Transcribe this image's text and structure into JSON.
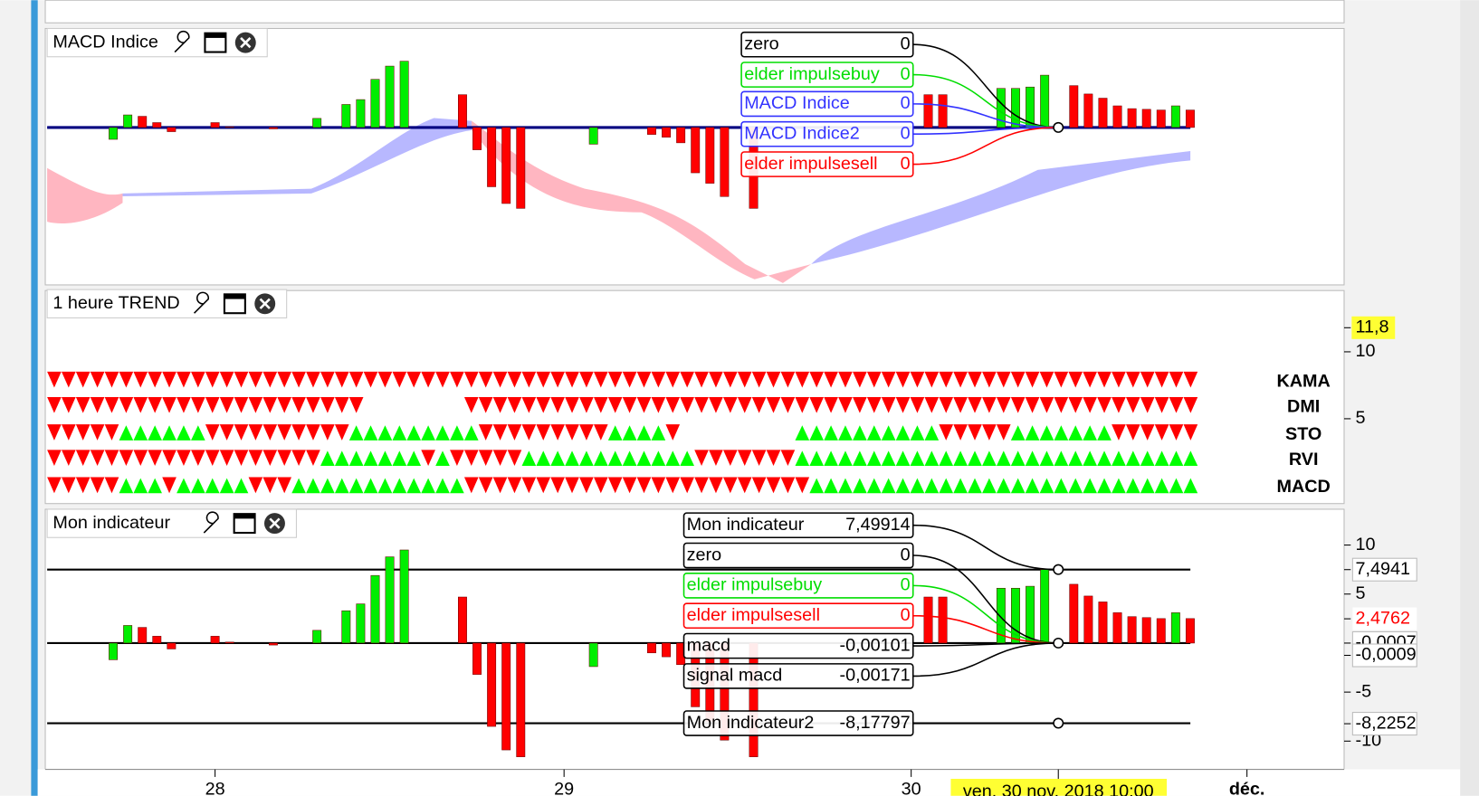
{
  "panels": [
    {
      "title": "MACD Indice",
      "legend": [
        {
          "name": "zero",
          "value": "0",
          "color": "#000000"
        },
        {
          "name": "elder impulsebuy",
          "value": "0",
          "color": "#00dd00"
        },
        {
          "name": "MACD Indice",
          "value": "0",
          "color": "#3333ff"
        },
        {
          "name": "MACD Indice2",
          "value": "0",
          "color": "#3333ff"
        },
        {
          "name": "elder impulsesell",
          "value": "0",
          "color": "#ff0000"
        }
      ]
    },
    {
      "title": "1 heure TREND",
      "marker": "11,8",
      "yticks": [
        10,
        5
      ],
      "rows": [
        {
          "name": "KAMA",
          "segments": [
            {
              "color": "#ff0000",
              "count": 80
            }
          ]
        },
        {
          "name": "DMI",
          "segments": [
            {
              "color": "#ff0000",
              "count": 22
            },
            {
              "color": null,
              "count": 7
            },
            {
              "color": "#ff0000",
              "count": 51
            }
          ]
        },
        {
          "name": "STO",
          "segments": [
            {
              "color": "#ff0000",
              "count": 5
            },
            {
              "color": "#00ff00",
              "count": 6
            },
            {
              "color": "#ff0000",
              "count": 10
            },
            {
              "color": "#00ff00",
              "count": 9
            },
            {
              "color": "#ff0000",
              "count": 9
            },
            {
              "color": "#00ff00",
              "count": 4
            },
            {
              "color": "#ff0000",
              "count": 1
            },
            {
              "color": null,
              "count": 8
            },
            {
              "color": "#00ff00",
              "count": 10
            },
            {
              "color": "#ff0000",
              "count": 5
            },
            {
              "color": "#00ff00",
              "count": 7
            },
            {
              "color": "#ff0000",
              "count": 6
            }
          ]
        },
        {
          "name": "RVI",
          "segments": [
            {
              "color": "#ff0000",
              "count": 19
            },
            {
              "color": "#00ff00",
              "count": 7
            },
            {
              "color": "#ff0000",
              "count": 1
            },
            {
              "color": "#00ff00",
              "count": 1
            },
            {
              "color": "#ff0000",
              "count": 5
            },
            {
              "color": "#00ff00",
              "count": 12
            },
            {
              "color": "#ff0000",
              "count": 7
            },
            {
              "color": "#00ff00",
              "count": 28
            }
          ]
        },
        {
          "name": "MACD",
          "segments": [
            {
              "color": "#ff0000",
              "count": 5
            },
            {
              "color": "#00ff00",
              "count": 3
            },
            {
              "color": "#ff0000",
              "count": 1
            },
            {
              "color": "#00ff00",
              "count": 5
            },
            {
              "color": "#ff0000",
              "count": 3
            },
            {
              "color": "#00ff00",
              "count": 12
            },
            {
              "color": "#ff0000",
              "count": 24
            },
            {
              "color": "#00ff00",
              "count": 27
            }
          ]
        }
      ]
    },
    {
      "title": "Mon indicateur",
      "yticks": [
        10,
        5,
        -5,
        -10
      ],
      "value_boxes": [
        {
          "label": "7,4941",
          "color": "#000000"
        },
        {
          "label": "2,4762",
          "color": "#ff0000"
        },
        {
          "label": "-0,0007",
          "color": "#000000"
        },
        {
          "label": "-0,0009",
          "color": "#000000"
        },
        {
          "label": "-8,2252",
          "color": "#000000"
        }
      ],
      "legend": [
        {
          "name": "Mon indicateur",
          "value": "7,49914",
          "color": "#000000"
        },
        {
          "name": "zero",
          "value": "0",
          "color": "#000000"
        },
        {
          "name": "elder impulsebuy",
          "value": "0",
          "color": "#00dd00"
        },
        {
          "name": "elder impulsesell",
          "value": "0",
          "color": "#ff0000"
        },
        {
          "name": "macd",
          "value": "-0,00101",
          "color": "#000000"
        },
        {
          "name": "signal macd",
          "value": "-0,00171",
          "color": "#000000"
        },
        {
          "name": "Mon indicateur2",
          "value": "-8,17797",
          "color": "#000000"
        }
      ]
    }
  ],
  "histogram": {
    "values": [
      -1.7,
      1.8,
      1.6,
      0.7,
      -0.6,
      null,
      null,
      0.7,
      0.1,
      null,
      null,
      -0.2,
      null,
      null,
      1.3,
      null,
      3.3,
      4,
      6.9,
      8.8,
      9.5,
      null,
      null,
      null,
      4.7,
      -3.2,
      -8.5,
      -10.9,
      -11.6,
      null,
      null,
      null,
      null,
      -2.4,
      null,
      null,
      null,
      -1,
      -1.4,
      -2.2,
      -6.5,
      -8,
      -9.9,
      null,
      -11.6,
      null,
      null,
      null,
      null,
      null,
      null,
      null,
      null,
      null,
      null,
      null,
      4.7,
      4.7,
      null,
      null,
      null,
      5.6,
      5.6,
      5.8,
      7.5,
      null,
      6,
      4.8,
      4.2,
      3.1,
      2.7,
      2.6,
      2.5,
      3.1,
      2.5
    ],
    "colors": [
      "#00ee00",
      "#00ee00",
      "#ff0000",
      "#ff0000",
      "#ff0000",
      null,
      null,
      "#ff0000",
      "#ff0000",
      null,
      null,
      "#ff0000",
      null,
      null,
      "#00ee00",
      null,
      "#00ee00",
      "#00ee00",
      "#00ee00",
      "#00ee00",
      "#00ee00",
      null,
      null,
      null,
      "#ff0000",
      "#ff0000",
      "#ff0000",
      "#ff0000",
      "#ff0000",
      null,
      null,
      null,
      null,
      "#00ee00",
      null,
      null,
      null,
      "#ff0000",
      "#ff0000",
      "#ff0000",
      "#ff0000",
      "#ff0000",
      "#ff0000",
      null,
      "#ff0000",
      null,
      null,
      null,
      null,
      null,
      null,
      null,
      null,
      null,
      null,
      null,
      "#ff0000",
      "#ff0000",
      null,
      null,
      null,
      "#00ee00",
      "#00ee00",
      "#00ee00",
      "#00ee00",
      null,
      "#ff0000",
      "#ff0000",
      "#ff0000",
      "#ff0000",
      "#ff0000",
      "#ff0000",
      "#ff0000",
      "#00ee00",
      "#ff0000"
    ]
  },
  "x_labels": [
    "28",
    "29",
    "30",
    "déc."
  ],
  "cursor_label": "ven. 30 nov. 2018 10:00"
}
